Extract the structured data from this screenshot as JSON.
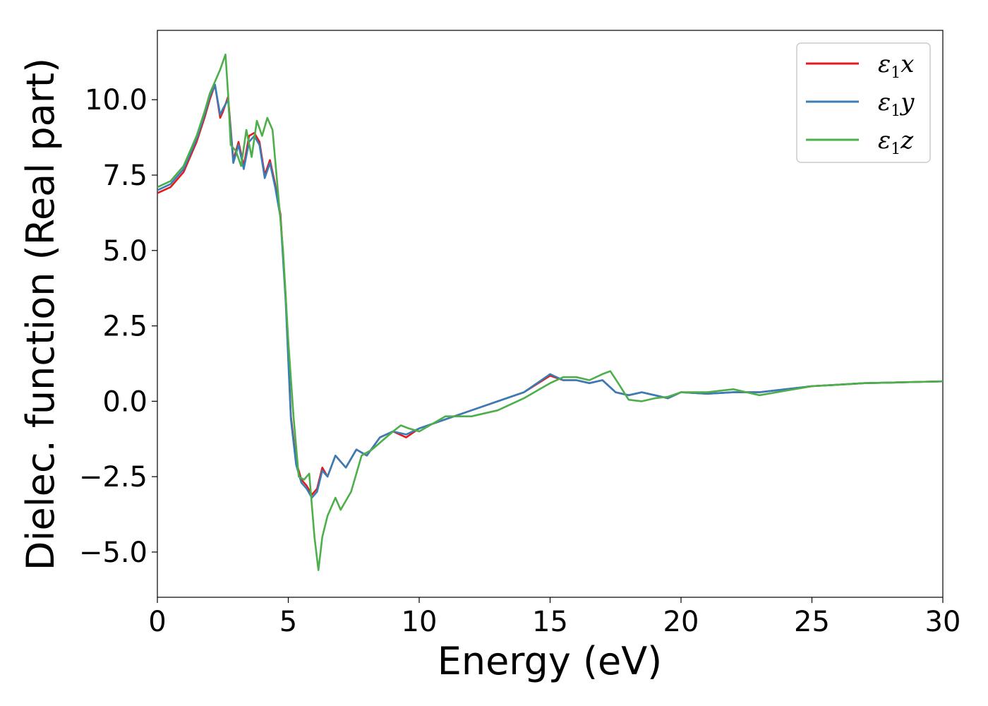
{
  "chart_data": {
    "type": "line",
    "xlabel": "Energy (eV)",
    "ylabel": "Dielec. function (Real part)",
    "xlim": [
      0,
      30
    ],
    "ylim": [
      -6.5,
      12.3
    ],
    "x_ticks": [
      0,
      5,
      10,
      15,
      20,
      25,
      30
    ],
    "x_tick_labels": [
      "0",
      "5",
      "10",
      "15",
      "20",
      "25",
      "30"
    ],
    "y_ticks": [
      -5.0,
      -2.5,
      0.0,
      2.5,
      5.0,
      7.5,
      10.0
    ],
    "y_tick_labels": [
      "−5.0",
      "−2.5",
      "0.0",
      "2.5",
      "5.0",
      "7.5",
      "10.0"
    ],
    "grid": false,
    "legend_position": "top-right",
    "series": [
      {
        "name": "ε₁x",
        "label_main": "ε",
        "label_sub": "1",
        "label_var": "x",
        "color": "#e41a1c",
        "x": [
          0,
          0.5,
          1.0,
          1.5,
          1.8,
          2.0,
          2.2,
          2.4,
          2.5,
          2.7,
          2.9,
          3.1,
          3.3,
          3.5,
          3.7,
          3.9,
          4.1,
          4.3,
          4.5,
          4.7,
          4.9,
          5.1,
          5.3,
          5.5,
          5.7,
          5.9,
          6.1,
          6.3,
          6.5,
          6.8,
          7.2,
          7.6,
          8.0,
          8.5,
          9.0,
          9.5,
          10.0,
          11.0,
          12.0,
          13.0,
          14.0,
          15.0,
          15.5,
          16.0,
          16.5,
          17.0,
          17.5,
          18.0,
          18.5,
          19.0,
          19.5,
          20.0,
          21.0,
          22.0,
          23.0,
          24.0,
          25.0,
          26.0,
          27.0,
          28.0,
          29.0,
          30.0
        ],
        "y": [
          6.9,
          7.1,
          7.6,
          8.6,
          9.4,
          10.0,
          10.5,
          9.4,
          9.6,
          10.1,
          8.0,
          8.6,
          7.8,
          8.8,
          8.9,
          8.6,
          7.5,
          8.0,
          7.2,
          6.2,
          3.5,
          -0.5,
          -2.0,
          -2.6,
          -2.8,
          -3.1,
          -2.9,
          -2.2,
          -2.5,
          -1.8,
          -2.2,
          -1.6,
          -1.8,
          -1.2,
          -1.0,
          -1.2,
          -0.9,
          -0.6,
          -0.3,
          0.0,
          0.3,
          0.85,
          0.7,
          0.7,
          0.6,
          0.7,
          0.3,
          0.2,
          0.3,
          0.2,
          0.1,
          0.3,
          0.25,
          0.3,
          0.3,
          0.4,
          0.5,
          0.55,
          0.6,
          0.62,
          0.64,
          0.66
        ]
      },
      {
        "name": "ε₁y",
        "label_main": "ε",
        "label_sub": "1",
        "label_var": "y",
        "color": "#377eb8",
        "x": [
          0,
          0.5,
          1.0,
          1.5,
          1.8,
          2.0,
          2.2,
          2.4,
          2.5,
          2.7,
          2.9,
          3.1,
          3.3,
          3.5,
          3.7,
          3.9,
          4.1,
          4.3,
          4.5,
          4.7,
          4.9,
          5.1,
          5.3,
          5.5,
          5.7,
          5.9,
          6.1,
          6.3,
          6.5,
          6.8,
          7.2,
          7.6,
          8.0,
          8.5,
          9.0,
          9.5,
          10.0,
          11.0,
          12.0,
          13.0,
          14.0,
          15.0,
          15.5,
          16.0,
          16.5,
          17.0,
          17.5,
          18.0,
          18.5,
          19.0,
          19.5,
          20.0,
          21.0,
          22.0,
          23.0,
          24.0,
          25.0,
          26.0,
          27.0,
          28.0,
          29.0,
          30.0
        ],
        "y": [
          7.0,
          7.2,
          7.7,
          8.7,
          9.5,
          10.1,
          10.5,
          9.5,
          9.7,
          10.0,
          7.9,
          8.5,
          7.7,
          8.6,
          8.8,
          8.5,
          7.4,
          7.9,
          7.1,
          6.1,
          3.3,
          -0.6,
          -2.1,
          -2.7,
          -2.9,
          -3.2,
          -3.0,
          -2.3,
          -2.5,
          -1.8,
          -2.2,
          -1.6,
          -1.8,
          -1.2,
          -1.0,
          -1.1,
          -0.9,
          -0.6,
          -0.3,
          0.0,
          0.3,
          0.9,
          0.7,
          0.7,
          0.6,
          0.7,
          0.3,
          0.2,
          0.3,
          0.2,
          0.1,
          0.3,
          0.25,
          0.3,
          0.3,
          0.4,
          0.5,
          0.55,
          0.6,
          0.62,
          0.64,
          0.66
        ]
      },
      {
        "name": "ε₁z",
        "label_main": "ε",
        "label_sub": "1",
        "label_var": "z",
        "color": "#4daf4a",
        "x": [
          0,
          0.5,
          1.0,
          1.5,
          1.8,
          2.0,
          2.2,
          2.4,
          2.6,
          2.7,
          2.8,
          3.0,
          3.2,
          3.4,
          3.6,
          3.8,
          4.0,
          4.2,
          4.4,
          4.6,
          4.8,
          5.0,
          5.2,
          5.4,
          5.6,
          5.8,
          6.0,
          6.15,
          6.3,
          6.5,
          6.8,
          7.0,
          7.4,
          7.8,
          8.2,
          8.6,
          9.0,
          9.3,
          9.6,
          10.0,
          11.0,
          12.0,
          13.0,
          14.0,
          15.0,
          15.5,
          16.0,
          16.5,
          17.0,
          17.3,
          17.6,
          18.0,
          18.5,
          19.0,
          19.5,
          20.0,
          21.0,
          22.0,
          22.5,
          23.0,
          24.0,
          25.0,
          26.0,
          27.0,
          28.0,
          29.0,
          30.0
        ],
        "y": [
          7.1,
          7.3,
          7.8,
          8.8,
          9.6,
          10.2,
          10.6,
          11.0,
          11.5,
          10.2,
          8.5,
          8.3,
          7.8,
          9.0,
          8.1,
          9.3,
          8.8,
          9.4,
          9.0,
          7.0,
          5.0,
          2.0,
          -0.5,
          -2.5,
          -2.6,
          -2.4,
          -4.5,
          -5.6,
          -4.5,
          -3.8,
          -3.2,
          -3.6,
          -3.0,
          -1.8,
          -1.6,
          -1.3,
          -1.0,
          -0.8,
          -0.9,
          -1.0,
          -0.5,
          -0.5,
          -0.3,
          0.1,
          0.6,
          0.8,
          0.8,
          0.7,
          0.9,
          1.0,
          0.6,
          0.05,
          0.0,
          0.1,
          0.15,
          0.3,
          0.3,
          0.4,
          0.3,
          0.2,
          0.35,
          0.5,
          0.55,
          0.6,
          0.62,
          0.64,
          0.66
        ]
      }
    ]
  }
}
